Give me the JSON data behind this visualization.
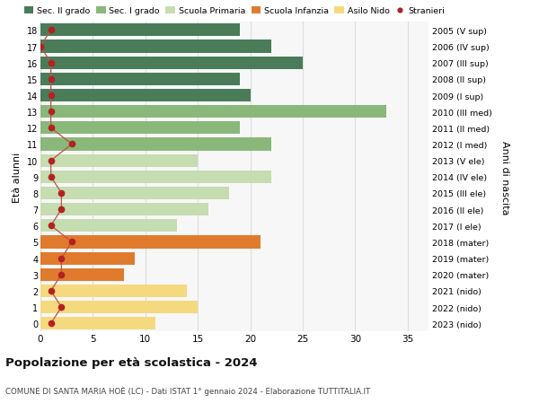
{
  "ages": [
    18,
    17,
    16,
    15,
    14,
    13,
    12,
    11,
    10,
    9,
    8,
    7,
    6,
    5,
    4,
    3,
    2,
    1,
    0
  ],
  "bar_values": [
    19,
    22,
    25,
    19,
    20,
    33,
    19,
    22,
    15,
    22,
    18,
    16,
    13,
    21,
    9,
    8,
    14,
    15,
    11
  ],
  "bar_colors": [
    "#4a7c59",
    "#4a7c59",
    "#4a7c59",
    "#4a7c59",
    "#4a7c59",
    "#8ab87a",
    "#8ab87a",
    "#8ab87a",
    "#c5ddb0",
    "#c5ddb0",
    "#c5ddb0",
    "#c5ddb0",
    "#c5ddb0",
    "#e07b2e",
    "#e07b2e",
    "#e07b2e",
    "#f5d97e",
    "#f5d97e",
    "#f5d97e"
  ],
  "stranieri_values": [
    1,
    0,
    1,
    1,
    1,
    1,
    1,
    3,
    1,
    1,
    2,
    2,
    1,
    3,
    2,
    2,
    1,
    2,
    1
  ],
  "right_labels": [
    "2005 (V sup)",
    "2006 (IV sup)",
    "2007 (III sup)",
    "2008 (II sup)",
    "2009 (I sup)",
    "2010 (III med)",
    "2011 (II med)",
    "2012 (I med)",
    "2013 (V ele)",
    "2014 (IV ele)",
    "2015 (III ele)",
    "2016 (II ele)",
    "2017 (I ele)",
    "2018 (mater)",
    "2019 (mater)",
    "2020 (mater)",
    "2021 (nido)",
    "2022 (nido)",
    "2023 (nido)"
  ],
  "legend_labels": [
    "Sec. II grado",
    "Sec. I grado",
    "Scuola Primaria",
    "Scuola Infanzia",
    "Asilo Nido",
    "Stranieri"
  ],
  "legend_colors": [
    "#4a7c59",
    "#8ab87a",
    "#c5ddb0",
    "#e07b2e",
    "#f5d97e",
    "#b22222"
  ],
  "ylabel": "Età alunni",
  "ylabel_right": "Anni di nascita",
  "title": "Popolazione per età scolastica - 2024",
  "subtitle": "COMUNE DI SANTA MARIA HOÈ (LC) - Dati ISTAT 1° gennaio 2024 - Elaborazione TUTTITALIA.IT",
  "xlim": [
    0,
    37
  ],
  "xticks": [
    0,
    5,
    10,
    15,
    20,
    25,
    30,
    35
  ],
  "grid_color": "#dddddd",
  "bar_height": 0.78,
  "stranieri_color": "#b22222",
  "line_color": "#c0504d",
  "bg_color": "#ffffff",
  "plot_bg_color": "#f7f7f7"
}
